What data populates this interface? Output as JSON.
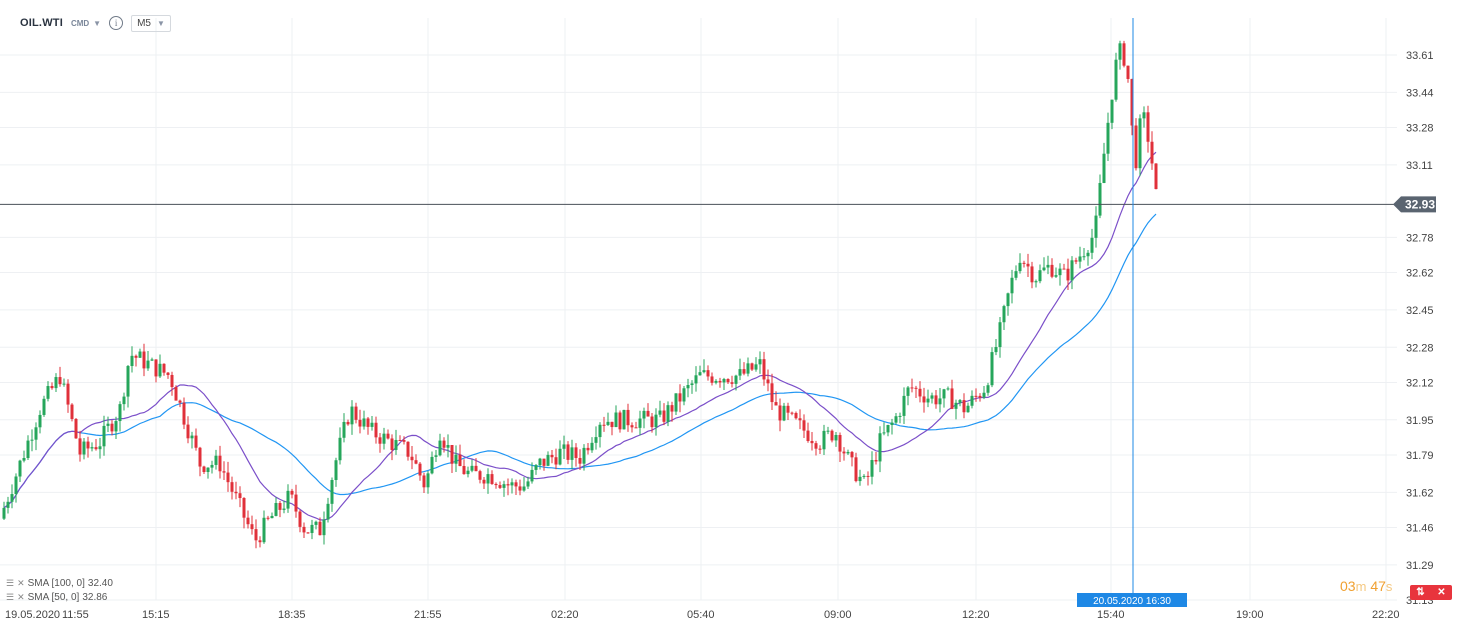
{
  "header": {
    "symbol": "OIL.WTI",
    "instrument_type": "CMD",
    "info_icon": "info-icon",
    "interval": "M5"
  },
  "legend": [
    {
      "label": "SMA [100,  0]",
      "value": "32.40",
      "color": "#2196f3"
    },
    {
      "label": "SMA [50,  0]",
      "value": "32.86",
      "color": "#7b4fc9"
    }
  ],
  "current_price": "32.93",
  "crosshair_time": "20.05.2020 16:30",
  "timer": {
    "minutes": "03",
    "min_unit": "m",
    "seconds": "47",
    "sec_unit": "s"
  },
  "colors": {
    "up": "#26a65b",
    "down": "#e0303a",
    "sma100": "#2196f3",
    "sma50": "#7b4fc9",
    "price_line": "#4a5058",
    "crosshair": "#1e88e5",
    "close_btn": "#e8343d"
  },
  "chart_data": {
    "type": "candlestick",
    "y_ticks": [
      "33.61",
      "33.44",
      "33.28",
      "33.11",
      "32.93",
      "32.78",
      "32.62",
      "32.45",
      "32.28",
      "32.12",
      "31.95",
      "31.79",
      "31.62",
      "31.46",
      "31.29",
      "31.13"
    ],
    "x_ticks": [
      "19.05.2020",
      "11:55",
      "15:15",
      "18:35",
      "21:55",
      "02:20",
      "05:40",
      "09:00",
      "12:20",
      "15:40",
      "19:00",
      "22:20"
    ],
    "ylim": [
      31.13,
      33.74
    ],
    "grid": true,
    "series": [
      {
        "name": "SMA [100,  0]",
        "last": 32.4
      },
      {
        "name": "SMA [50,  0]",
        "last": 32.86
      }
    ],
    "price_trend": [
      [
        0,
        31.5
      ],
      [
        20,
        31.75
      ],
      [
        40,
        32.0
      ],
      [
        60,
        32.15
      ],
      [
        80,
        31.8
      ],
      [
        100,
        31.85
      ],
      [
        120,
        32.0
      ],
      [
        130,
        32.25
      ],
      [
        150,
        32.2
      ],
      [
        170,
        32.15
      ],
      [
        185,
        31.95
      ],
      [
        200,
        31.75
      ],
      [
        220,
        31.75
      ],
      [
        240,
        31.55
      ],
      [
        255,
        31.4
      ],
      [
        270,
        31.5
      ],
      [
        290,
        31.6
      ],
      [
        305,
        31.45
      ],
      [
        320,
        31.45
      ],
      [
        335,
        31.75
      ],
      [
        350,
        32.0
      ],
      [
        370,
        31.9
      ],
      [
        390,
        31.85
      ],
      [
        410,
        31.8
      ],
      [
        425,
        31.65
      ],
      [
        440,
        31.9
      ],
      [
        455,
        31.75
      ],
      [
        470,
        31.7
      ],
      [
        490,
        31.7
      ],
      [
        510,
        31.65
      ],
      [
        525,
        31.65
      ],
      [
        540,
        31.75
      ],
      [
        560,
        31.8
      ],
      [
        580,
        31.78
      ],
      [
        600,
        31.95
      ],
      [
        620,
        31.95
      ],
      [
        640,
        31.95
      ],
      [
        660,
        31.95
      ],
      [
        680,
        32.05
      ],
      [
        700,
        32.15
      ],
      [
        720,
        32.15
      ],
      [
        740,
        32.15
      ],
      [
        760,
        32.2
      ],
      [
        775,
        32.0
      ],
      [
        790,
        31.95
      ],
      [
        805,
        31.9
      ],
      [
        820,
        31.85
      ],
      [
        835,
        31.9
      ],
      [
        850,
        31.75
      ],
      [
        865,
        31.65
      ],
      [
        880,
        31.85
      ],
      [
        895,
        31.95
      ],
      [
        910,
        32.1
      ],
      [
        930,
        32.05
      ],
      [
        950,
        32.05
      ],
      [
        965,
        32.0
      ],
      [
        985,
        32.1
      ],
      [
        1000,
        32.35
      ],
      [
        1010,
        32.55
      ],
      [
        1020,
        32.7
      ],
      [
        1035,
        32.6
      ],
      [
        1050,
        32.65
      ],
      [
        1065,
        32.6
      ],
      [
        1080,
        32.7
      ],
      [
        1095,
        32.8
      ],
      [
        1105,
        33.2
      ],
      [
        1115,
        33.55
      ],
      [
        1122,
        33.65
      ],
      [
        1128,
        33.5
      ],
      [
        1135,
        33.1
      ],
      [
        1142,
        33.35
      ],
      [
        1150,
        33.2
      ],
      [
        1157,
        32.93
      ]
    ]
  }
}
